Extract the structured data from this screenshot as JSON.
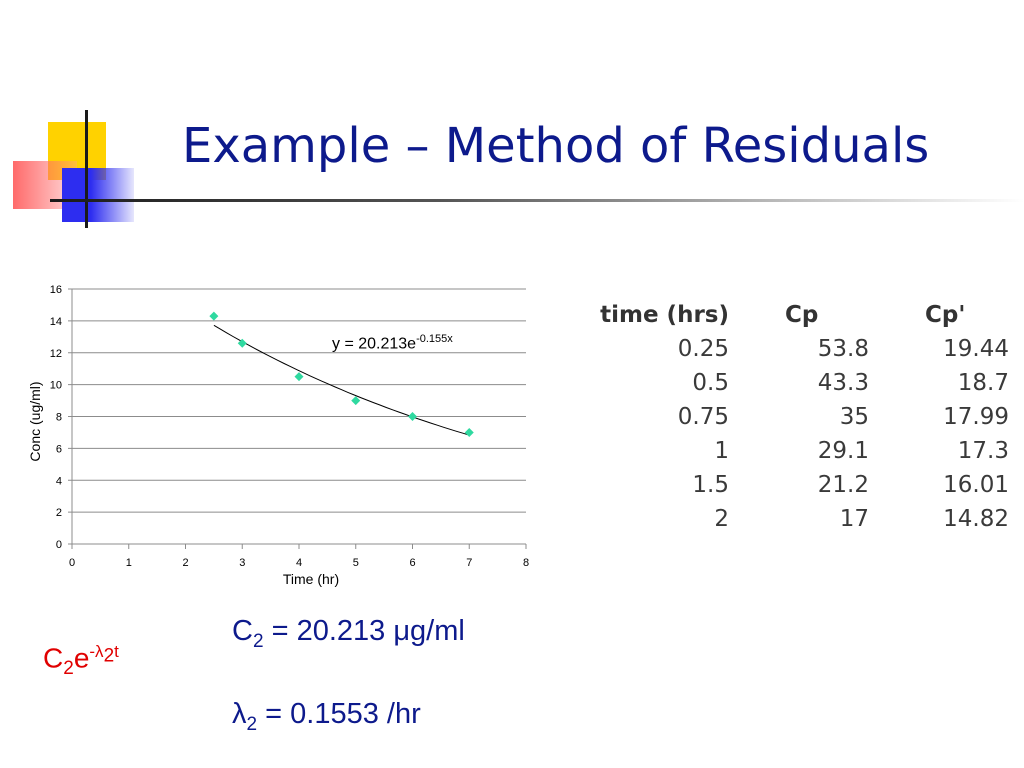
{
  "title": "Example – Method of Residuals",
  "chart_data": {
    "type": "scatter",
    "x": [
      2.5,
      3,
      4,
      5,
      6,
      7
    ],
    "y": [
      14.3,
      12.6,
      10.5,
      9.0,
      8.0,
      7.0
    ],
    "xlabel": "Time (hr)",
    "ylabel": "Conc (ug/ml)",
    "xlim": [
      0,
      8
    ],
    "ylim": [
      0,
      16
    ],
    "x_ticks": [
      "0",
      "1",
      "2",
      "3",
      "4",
      "5",
      "6",
      "7",
      "8"
    ],
    "y_ticks": [
      "0",
      "2",
      "4",
      "6",
      "8",
      "10",
      "12",
      "14",
      "16"
    ],
    "grid": "horizontal",
    "marker_color": "#2fd9a0",
    "trendline": {
      "type": "exponential",
      "a": 20.213,
      "b": -0.155,
      "x_range": [
        2.5,
        7
      ],
      "label_prefix": "y = 20.213e",
      "label_exponent": "-0.155x"
    }
  },
  "table": {
    "headers": [
      "time (hrs)",
      "Cp",
      "Cp'"
    ],
    "rows": [
      [
        "0.25",
        "53.8",
        "19.44"
      ],
      [
        "0.5",
        "43.3",
        "18.7"
      ],
      [
        "0.75",
        "35",
        "17.99"
      ],
      [
        "1",
        "29.1",
        "17.3"
      ],
      [
        "1.5",
        "21.2",
        "16.01"
      ],
      [
        "2",
        "17",
        "14.82"
      ]
    ]
  },
  "formula": {
    "base": "C",
    "sub": "2",
    "e": "e",
    "sup_prefix": "-λ",
    "sup_sub": "2",
    "sup_suffix": "t"
  },
  "results": {
    "c2": {
      "symbol": "C",
      "sub": "2",
      "text": " = 20.213 μg/ml"
    },
    "lambda2": {
      "symbol": "λ",
      "sub": "2",
      "text": " = 0.1553 /hr"
    }
  },
  "colors": {
    "title": "#0d1a8c",
    "formula_red": "#e00000",
    "marker": "#2fd9a0"
  }
}
